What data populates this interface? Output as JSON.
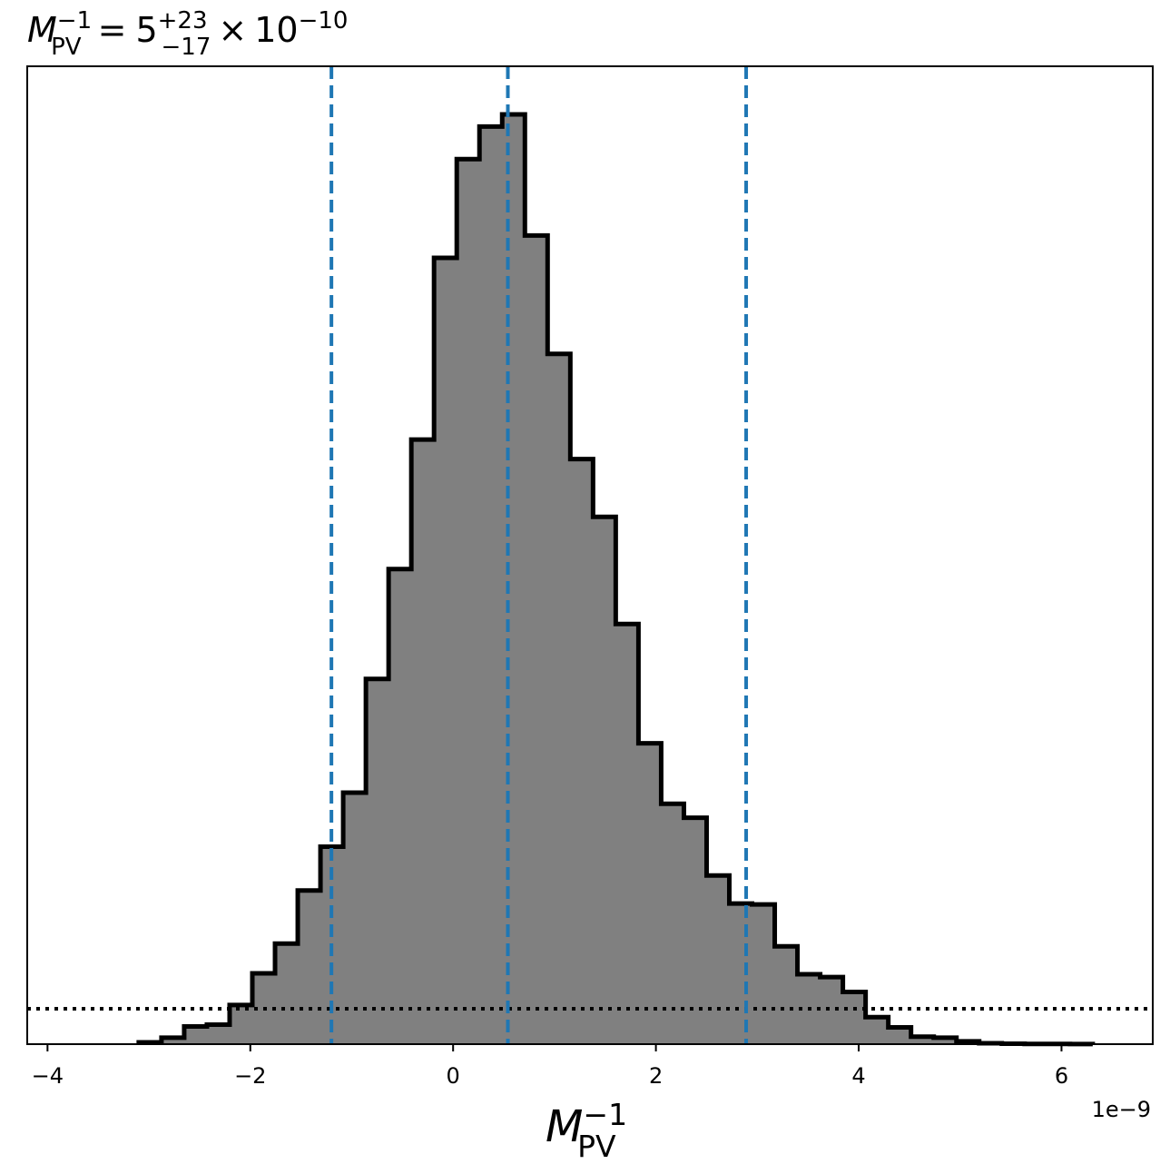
{
  "chart_data": {
    "type": "histogram",
    "title": {
      "symbol": "M",
      "sub": "PV",
      "sup": "−1",
      "equals": "=",
      "base": "5",
      "plus": "+23",
      "minus": "−17",
      "times": "×",
      "ten": "10",
      "exponent": "−10"
    },
    "xlabel": {
      "symbol": "M",
      "sub": "PV",
      "sup": "−1"
    },
    "offset_text": "1e−9",
    "x_range": [
      -4.2e-09,
      6.9e-09
    ],
    "y_range": [
      0,
      1.0
    ],
    "x_ticks": [
      {
        "value": -4e-09,
        "label": "−4"
      },
      {
        "value": -2e-09,
        "label": "−2"
      },
      {
        "value": 0,
        "label": "0"
      },
      {
        "value": 2e-09,
        "label": "2"
      },
      {
        "value": 4e-09,
        "label": "4"
      },
      {
        "value": 6e-09,
        "label": "6"
      }
    ],
    "bins": {
      "start": -3.1e-09,
      "width": 2.24e-10,
      "heights": [
        0.002,
        0.007,
        0.019,
        0.021,
        0.042,
        0.076,
        0.108,
        0.165,
        0.212,
        0.27,
        0.392,
        0.51,
        0.649,
        0.844,
        0.95,
        0.985,
        0.998,
        0.868,
        0.741,
        0.628,
        0.566,
        0.451,
        0.323,
        0.258,
        0.243,
        0.181,
        0.151,
        0.15,
        0.105,
        0.075,
        0.072,
        0.056,
        0.029,
        0.018,
        0.008,
        0.007,
        0.003,
        0.001,
        0.0005,
        0.0003,
        0.0002,
        0.0001
      ]
    },
    "fill_color": "#808080",
    "edge_color": "#000000",
    "vertical_lines": [
      {
        "x": -1.2e-09,
        "style": "dashed",
        "color": "#1f77b4"
      },
      {
        "x": 5.4e-10,
        "style": "dashed",
        "color": "#1f77b4"
      },
      {
        "x": 2.89e-09,
        "style": "dashed",
        "color": "#1f77b4"
      }
    ],
    "horizontal_line": {
      "y": 0.038,
      "style": "dotted",
      "color": "#000000"
    },
    "grid": false,
    "legend": "none"
  }
}
